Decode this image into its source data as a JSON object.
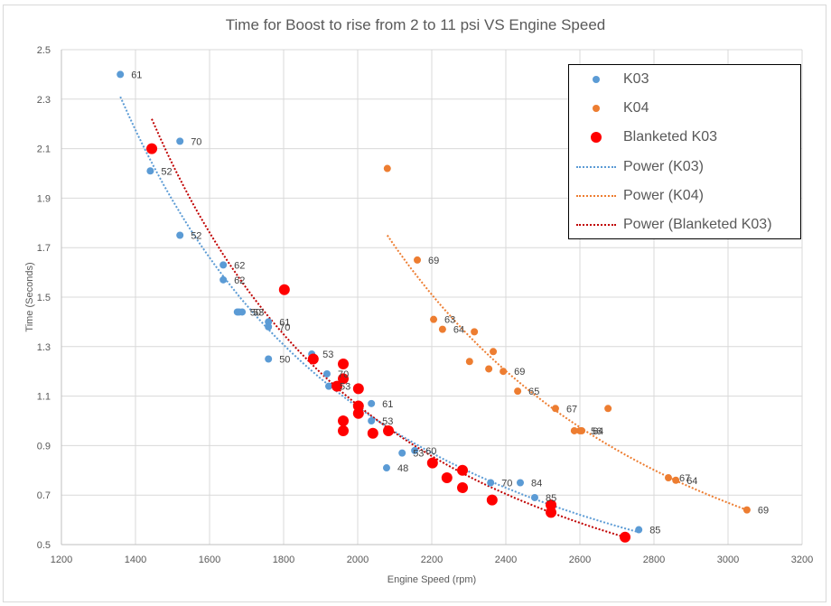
{
  "chart_data": {
    "type": "scatter",
    "title": "Time for Boost to rise from 2 to 11 psi VS Engine Speed",
    "xlabel": "Engine Speed (rpm)",
    "ylabel": "Time (Seconds)",
    "xlim": [
      1200,
      3200
    ],
    "ylim": [
      0.5,
      2.5
    ],
    "xticks": [
      1200,
      1400,
      1600,
      1800,
      2000,
      2200,
      2400,
      2600,
      2800,
      3000,
      3200
    ],
    "yticks": [
      0.5,
      0.7,
      0.9,
      1.1,
      1.3,
      1.5,
      1.7,
      1.9,
      2.1,
      2.3,
      2.5
    ],
    "grid": true,
    "legend_position": "top-right",
    "series": [
      {
        "name": "K03",
        "color": "#5b9bd5",
        "marker": "circle",
        "points": [
          {
            "x": 1359,
            "y": 2.4,
            "label": "61"
          },
          {
            "x": 1440,
            "y": 2.01,
            "label": "52"
          },
          {
            "x": 1520,
            "y": 2.13,
            "label": "70"
          },
          {
            "x": 1520,
            "y": 1.75,
            "label": "52"
          },
          {
            "x": 1637,
            "y": 1.63,
            "label": "62"
          },
          {
            "x": 1637,
            "y": 1.57,
            "label": "62"
          },
          {
            "x": 1675,
            "y": 1.44,
            "label": ""
          },
          {
            "x": 1680,
            "y": 1.44,
            "label": "50"
          },
          {
            "x": 1688,
            "y": 1.44,
            "label": "53"
          },
          {
            "x": 1759,
            "y": 1.4,
            "label": "61"
          },
          {
            "x": 1759,
            "y": 1.38,
            "label": "70"
          },
          {
            "x": 1759,
            "y": 1.25,
            "label": "50"
          },
          {
            "x": 1876,
            "y": 1.27,
            "label": "53"
          },
          {
            "x": 1917,
            "y": 1.19,
            "label": "70"
          },
          {
            "x": 1922,
            "y": 1.14,
            "label": "53"
          },
          {
            "x": 2037,
            "y": 1.07,
            "label": "61"
          },
          {
            "x": 2037,
            "y": 1.0,
            "label": "53"
          },
          {
            "x": 2078,
            "y": 0.81,
            "label": "48"
          },
          {
            "x": 2120,
            "y": 0.87,
            "label": "53"
          },
          {
            "x": 2154,
            "y": 0.88,
            "label": "60"
          },
          {
            "x": 2359,
            "y": 0.75,
            "label": "70"
          },
          {
            "x": 2439,
            "y": 0.75,
            "label": "84"
          },
          {
            "x": 2478,
            "y": 0.69,
            "label": "85"
          },
          {
            "x": 2759,
            "y": 0.56,
            "label": "85"
          }
        ]
      },
      {
        "name": "K04",
        "color": "#ed7d31",
        "marker": "circle",
        "points": [
          {
            "x": 2080,
            "y": 2.02,
            "label": ""
          },
          {
            "x": 2161,
            "y": 1.65,
            "label": "69"
          },
          {
            "x": 2205,
            "y": 1.41,
            "label": "63"
          },
          {
            "x": 2229,
            "y": 1.37,
            "label": "64"
          },
          {
            "x": 2315,
            "y": 1.36,
            "label": ""
          },
          {
            "x": 2302,
            "y": 1.24,
            "label": ""
          },
          {
            "x": 2366,
            "y": 1.28,
            "label": ""
          },
          {
            "x": 2354,
            "y": 1.21,
            "label": ""
          },
          {
            "x": 2393,
            "y": 1.2,
            "label": "69"
          },
          {
            "x": 2432,
            "y": 1.12,
            "label": "65"
          },
          {
            "x": 2534,
            "y": 1.05,
            "label": "67"
          },
          {
            "x": 2585,
            "y": 0.96,
            "label": ""
          },
          {
            "x": 2600,
            "y": 0.96,
            "label": "56"
          },
          {
            "x": 2605,
            "y": 0.96,
            "label": "64"
          },
          {
            "x": 2676,
            "y": 1.05,
            "label": ""
          },
          {
            "x": 2839,
            "y": 0.77,
            "label": "67"
          },
          {
            "x": 2859,
            "y": 0.76,
            "label": "64"
          },
          {
            "x": 3051,
            "y": 0.64,
            "label": "69"
          }
        ]
      },
      {
        "name": "Blanketed K03",
        "color": "#ff0000",
        "marker": "circle-large",
        "points": [
          {
            "x": 1444,
            "y": 2.1
          },
          {
            "x": 1802,
            "y": 1.53
          },
          {
            "x": 1880,
            "y": 1.25
          },
          {
            "x": 1961,
            "y": 1.23
          },
          {
            "x": 1961,
            "y": 1.17
          },
          {
            "x": 1944,
            "y": 1.14
          },
          {
            "x": 2002,
            "y": 1.13
          },
          {
            "x": 2002,
            "y": 1.06
          },
          {
            "x": 2002,
            "y": 1.03
          },
          {
            "x": 1961,
            "y": 1.0
          },
          {
            "x": 1961,
            "y": 0.96
          },
          {
            "x": 2041,
            "y": 0.95
          },
          {
            "x": 2083,
            "y": 0.96
          },
          {
            "x": 2202,
            "y": 0.83
          },
          {
            "x": 2241,
            "y": 0.77
          },
          {
            "x": 2283,
            "y": 0.8
          },
          {
            "x": 2283,
            "y": 0.73
          },
          {
            "x": 2363,
            "y": 0.68
          },
          {
            "x": 2522,
            "y": 0.66
          },
          {
            "x": 2522,
            "y": 0.63
          },
          {
            "x": 2722,
            "y": 0.53
          }
        ]
      }
    ],
    "trendlines": [
      {
        "name": "Power (K03)",
        "color": "#5b9bd5",
        "type": "power",
        "x_range": [
          1359,
          2759
        ],
        "y_at_start": 2.31,
        "y_at_end": 0.55
      },
      {
        "name": "Power (K04)",
        "color": "#ed7d31",
        "type": "power",
        "x_range": [
          2080,
          3051
        ],
        "y_at_start": 1.75,
        "y_at_end": 0.64
      },
      {
        "name": "Power (Blanketed K03)",
        "color": "#c00000",
        "type": "power",
        "x_range": [
          1444,
          2722
        ],
        "y_at_start": 2.22,
        "y_at_end": 0.53
      }
    ]
  },
  "legend": {
    "items": [
      {
        "label": "K03",
        "kind": "dot",
        "color": "#5b9bd5"
      },
      {
        "label": "K04",
        "kind": "dot",
        "color": "#ed7d31"
      },
      {
        "label": "Blanketed K03",
        "kind": "bigdot",
        "color": "#ff0000"
      },
      {
        "label": "Power (K03)",
        "kind": "line",
        "color": "#5b9bd5"
      },
      {
        "label": "Power (K04)",
        "kind": "line",
        "color": "#ed7d31"
      },
      {
        "label": "Power (Blanketed K03)",
        "kind": "line",
        "color": "#c00000"
      }
    ]
  }
}
